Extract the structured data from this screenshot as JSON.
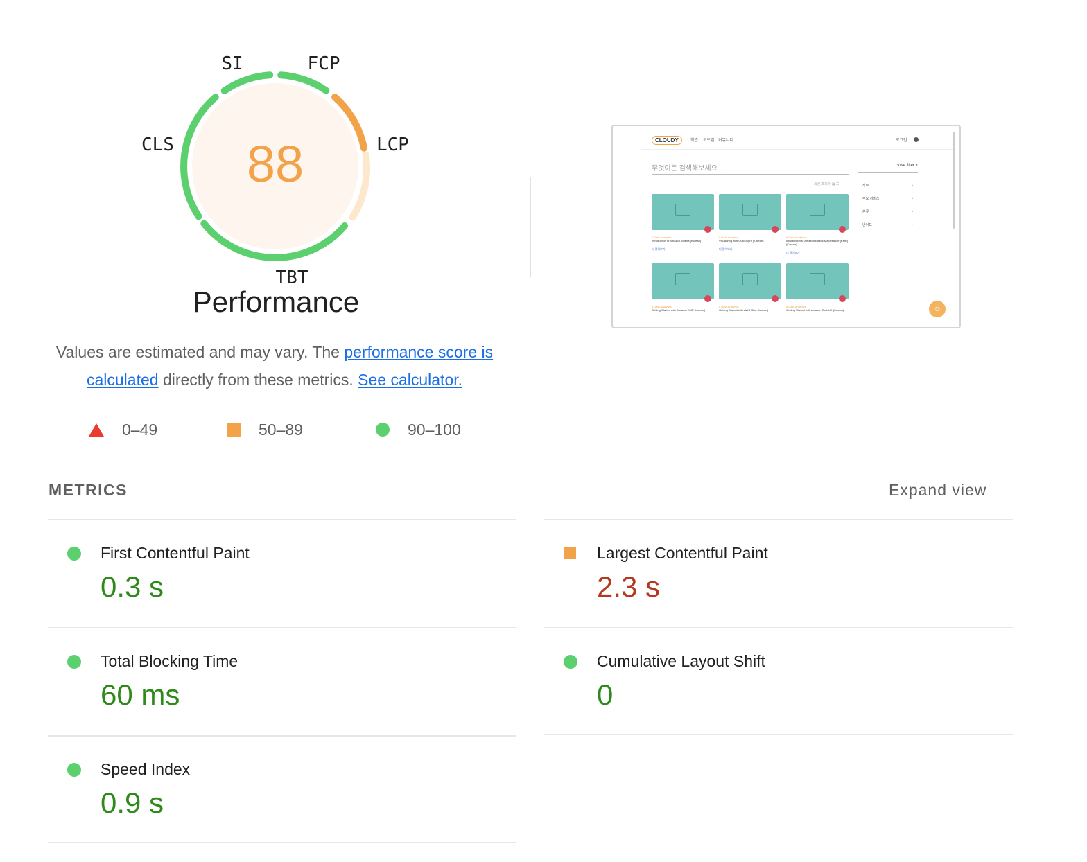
{
  "gauge": {
    "score": "88",
    "score_color": "#f2a34a",
    "labels": {
      "si": "SI",
      "fcp": "FCP",
      "lcp": "LCP",
      "tbt": "TBT",
      "cls": "CLS"
    }
  },
  "title": "Performance",
  "description": {
    "text1": "Values are estimated and may vary. The ",
    "link1": "performance score is calculated",
    "text2": " directly from these metrics. ",
    "link2": "See calculator."
  },
  "legend": [
    {
      "shape": "triangle",
      "color": "#eb3b2f",
      "range": "0–49"
    },
    {
      "shape": "square",
      "color": "#f2a34a",
      "range": "50–89"
    },
    {
      "shape": "circle",
      "color": "#5ccf6f",
      "range": "90–100"
    }
  ],
  "thumbnail": {
    "logo": "CLOUDY",
    "nav": [
      "학습",
      "로드맵",
      "커뮤니티"
    ],
    "login": "로그인",
    "search_placeholder": "무엇이든 검색해보세요 ...",
    "close_filter": "close filter ×",
    "sort": "최신 조회수 ▦ ☰",
    "filters": [
      "직무",
      "주요 서비스",
      "분류",
      "난이도"
    ],
    "cards": [
      {
        "tag": "# Data Analytics",
        "title": "Introduction to Amazon Athena (Korean)",
        "more": "더 알아보기"
      },
      {
        "tag": "# Data Analytics",
        "title": "Visualizing with QuickSight (Korean)",
        "more": "더 알아보기"
      },
      {
        "tag": "# Data Analytics",
        "title": "Introduction to Amazon Elastic MapReduce (EMR) (Korean)",
        "more": "더 알아보기"
      },
      {
        "tag": "# Data Analytics",
        "title": "Getting Started with Amazon EMR (Korean)",
        "more": ""
      },
      {
        "tag": "# Data Analytics",
        "title": "Getting Started with AWS Glue (Korean)",
        "more": ""
      },
      {
        "tag": "# Data Analytics",
        "title": "Getting Started with Amazon Redshift (Korean)",
        "more": ""
      }
    ]
  },
  "metrics": {
    "title": "METRICS",
    "expand": "Expand view",
    "items": [
      {
        "name": "First Contentful Paint",
        "value": "0.3 s",
        "status": "good"
      },
      {
        "name": "Largest Contentful Paint",
        "value": "2.3 s",
        "status": "average"
      },
      {
        "name": "Total Blocking Time",
        "value": "60 ms",
        "status": "good"
      },
      {
        "name": "Cumulative Layout Shift",
        "value": "0",
        "status": "good"
      },
      {
        "name": "Speed Index",
        "value": "0.9 s",
        "status": "good"
      }
    ]
  }
}
